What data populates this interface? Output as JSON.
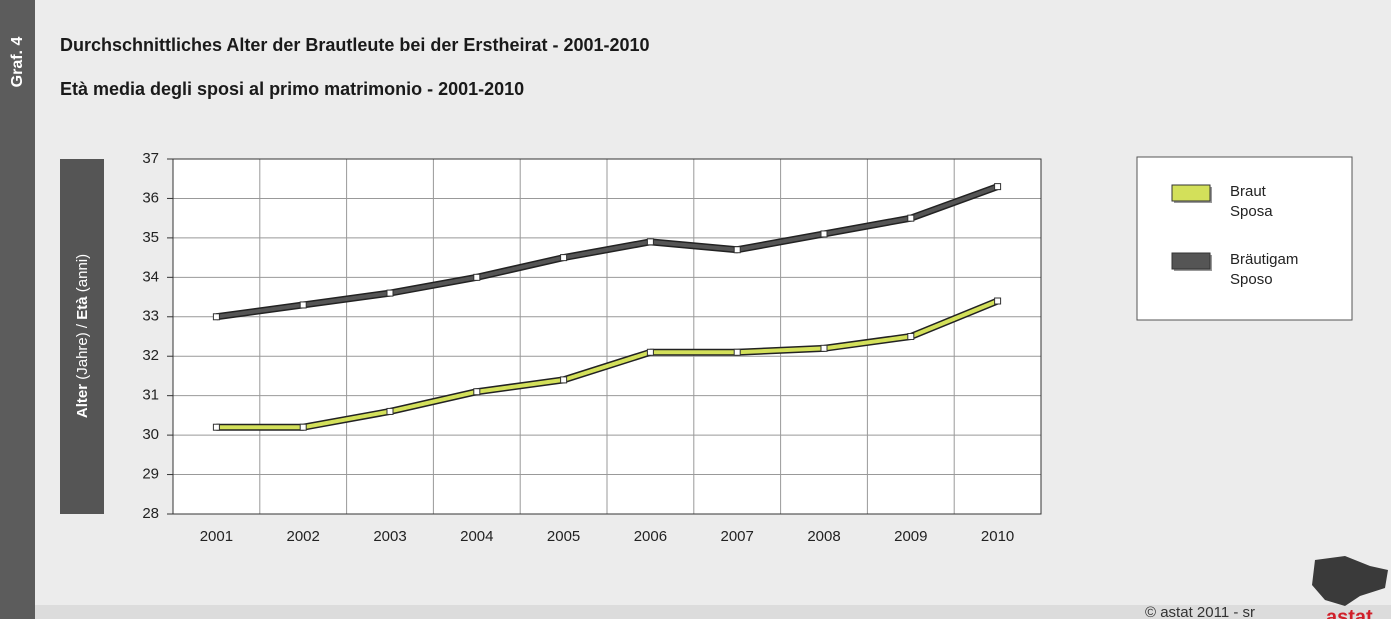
{
  "side_label": "Graf. 4",
  "footer": "© astat 2011 - sr",
  "logo": "astat",
  "chart_data": {
    "type": "line",
    "title": "Durchschnittliches Alter der Brautleute bei der Erstheirat - 2001-2010",
    "subtitle": "Età media degli sposi al primo matrimonio - 2001-2010",
    "ylabel_parts": [
      "Alter",
      " (Jahre) / ",
      "Età",
      " (anni)"
    ],
    "categories": [
      "2001",
      "2002",
      "2003",
      "2004",
      "2005",
      "2006",
      "2007",
      "2008",
      "2009",
      "2010"
    ],
    "series": [
      {
        "name": "Braut",
        "subname": "Sposa",
        "color": "#d3e05a",
        "values": [
          30.2,
          30.2,
          30.6,
          31.1,
          31.4,
          32.1,
          32.1,
          32.2,
          32.5,
          33.4
        ]
      },
      {
        "name": "Bräutigam",
        "subname": "Sposo",
        "color": "#555555",
        "values": [
          33.0,
          33.3,
          33.6,
          34.0,
          34.5,
          34.9,
          34.7,
          35.1,
          35.5,
          36.3
        ]
      }
    ],
    "ylim": [
      28,
      37
    ],
    "yticks": [
      28,
      29,
      30,
      31,
      32,
      33,
      34,
      35,
      36,
      37
    ],
    "grid": true
  }
}
